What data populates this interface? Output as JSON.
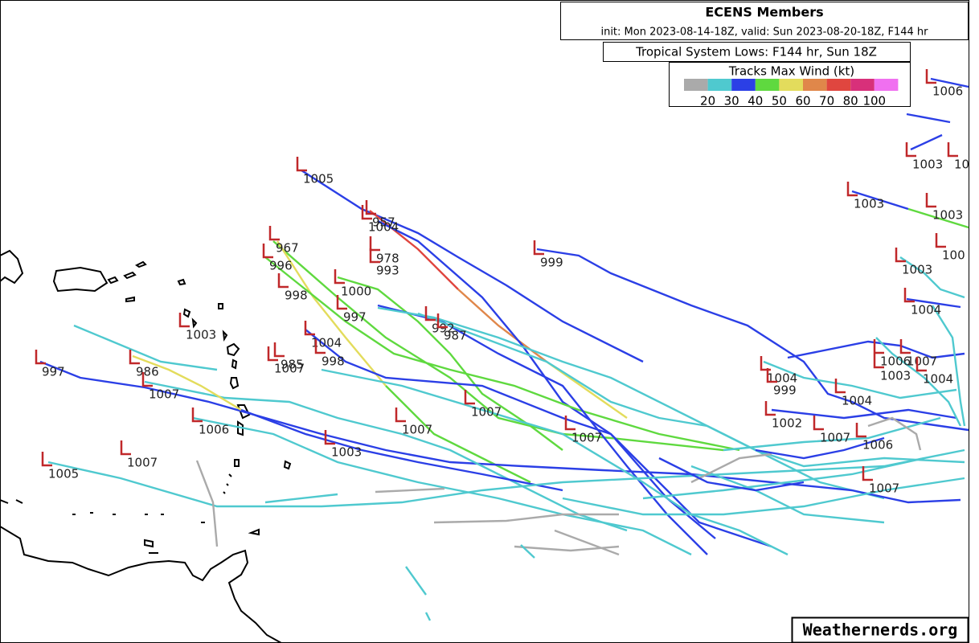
{
  "header": {
    "title": "ECENS Members",
    "init": "init: Mon 2023-08-14-18Z, valid: Sun 2023-08-20-18Z, F144 hr",
    "subtitle": "Tropical System Lows: F144 hr, Sun 18Z"
  },
  "legend": {
    "title": "Tracks Max Wind (kt)",
    "items": [
      {
        "label": 20,
        "color": "#aaaaaa"
      },
      {
        "label": 30,
        "color": "#4fc9cf"
      },
      {
        "label": 40,
        "color": "#2b3fe6"
      },
      {
        "label": 50,
        "color": "#5fd93f"
      },
      {
        "label": 60,
        "color": "#e3dc5c"
      },
      {
        "label": 70,
        "color": "#e0874a"
      },
      {
        "label": 80,
        "color": "#e0463f"
      },
      {
        "label": 100,
        "color": "#d8307a"
      },
      {
        "label": "",
        "color": "#f070f0"
      }
    ]
  },
  "lows": [
    "1005",
    "957",
    "1004",
    "967",
    "996",
    "978",
    "993",
    "999",
    "1000",
    "998",
    "997",
    "1003",
    "992",
    "987",
    "1004",
    "998",
    "985",
    "1007",
    "997",
    "986",
    "1007",
    "1007",
    "1006",
    "1007",
    "1007",
    "1003",
    "1007",
    "1005",
    "1004",
    "999",
    "1002",
    "1007",
    "1006",
    "1004",
    "1007",
    "1006",
    "1007",
    "1003",
    "1004",
    "1003",
    "1003",
    "1003",
    "1004",
    "1006",
    "1003",
    "10",
    "100"
  ],
  "watermark": "Weathernerds.org"
}
